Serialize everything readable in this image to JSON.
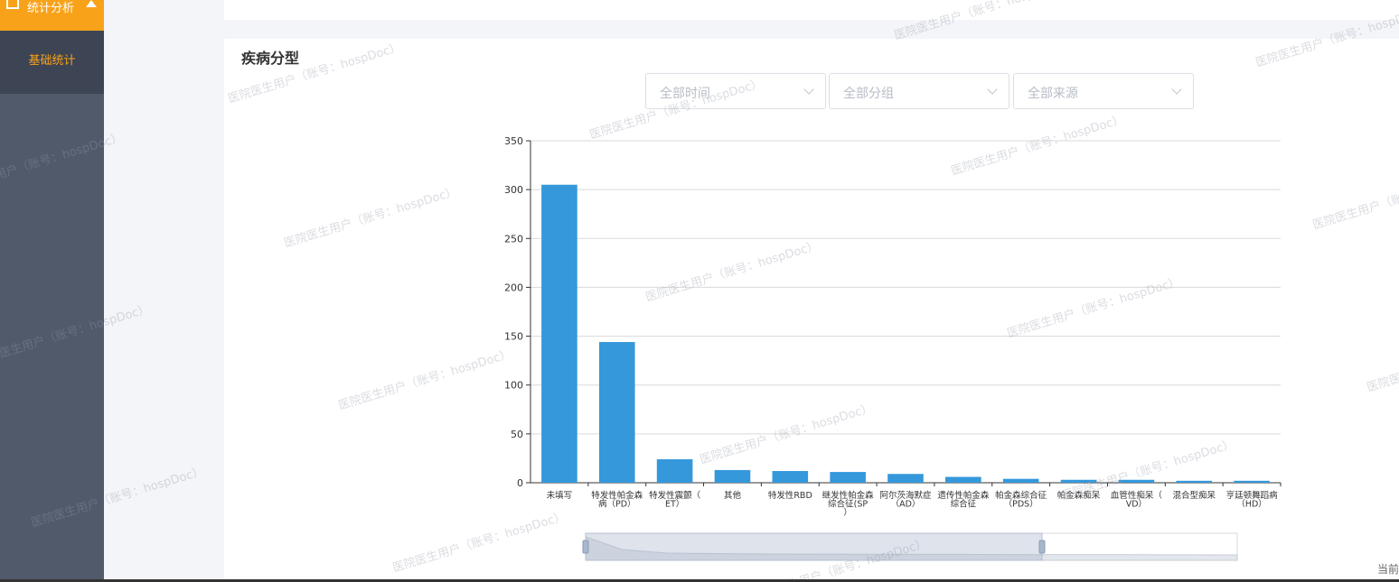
{
  "sidebar": {
    "section_label": "统计分析",
    "items": [
      {
        "label": "基础统计"
      }
    ],
    "accent": "#f8a21a"
  },
  "card": {
    "title": "疾病分型",
    "filters": [
      {
        "placeholder": "全部时间"
      },
      {
        "placeholder": "全部分组"
      },
      {
        "placeholder": "全部来源"
      }
    ]
  },
  "footer": {
    "text": "当前"
  },
  "watermark": "医院医生用户（账号：hospDoc）",
  "chart_data": {
    "type": "bar",
    "categories": [
      [
        "未填写"
      ],
      [
        "特发性帕金森",
        "病（PD）"
      ],
      [
        "特发性震颤（",
        "ET）"
      ],
      [
        "其他"
      ],
      [
        "特发性RBD"
      ],
      [
        "继发性帕金森",
        "综合征(SP",
        "）"
      ],
      [
        "阿尔茨海默症",
        "（AD）"
      ],
      [
        "遗传性帕金森",
        "综合征"
      ],
      [
        "帕金森综合征",
        "（PDS）"
      ],
      [
        "帕金森痴呆"
      ],
      [
        "血管性痴呆（",
        "VD）"
      ],
      [
        "混合型痴呆"
      ],
      [
        "亨廷顿舞蹈病",
        "（HD）"
      ]
    ],
    "values": [
      305,
      144,
      24,
      13,
      12,
      11,
      9,
      6,
      4,
      3,
      3,
      2,
      2
    ],
    "ylim": [
      0,
      350
    ],
    "yticks": [
      0,
      50,
      100,
      150,
      200,
      250,
      300,
      350
    ],
    "grid": true,
    "bar_color": "#3498db",
    "has_datazoom": true
  }
}
